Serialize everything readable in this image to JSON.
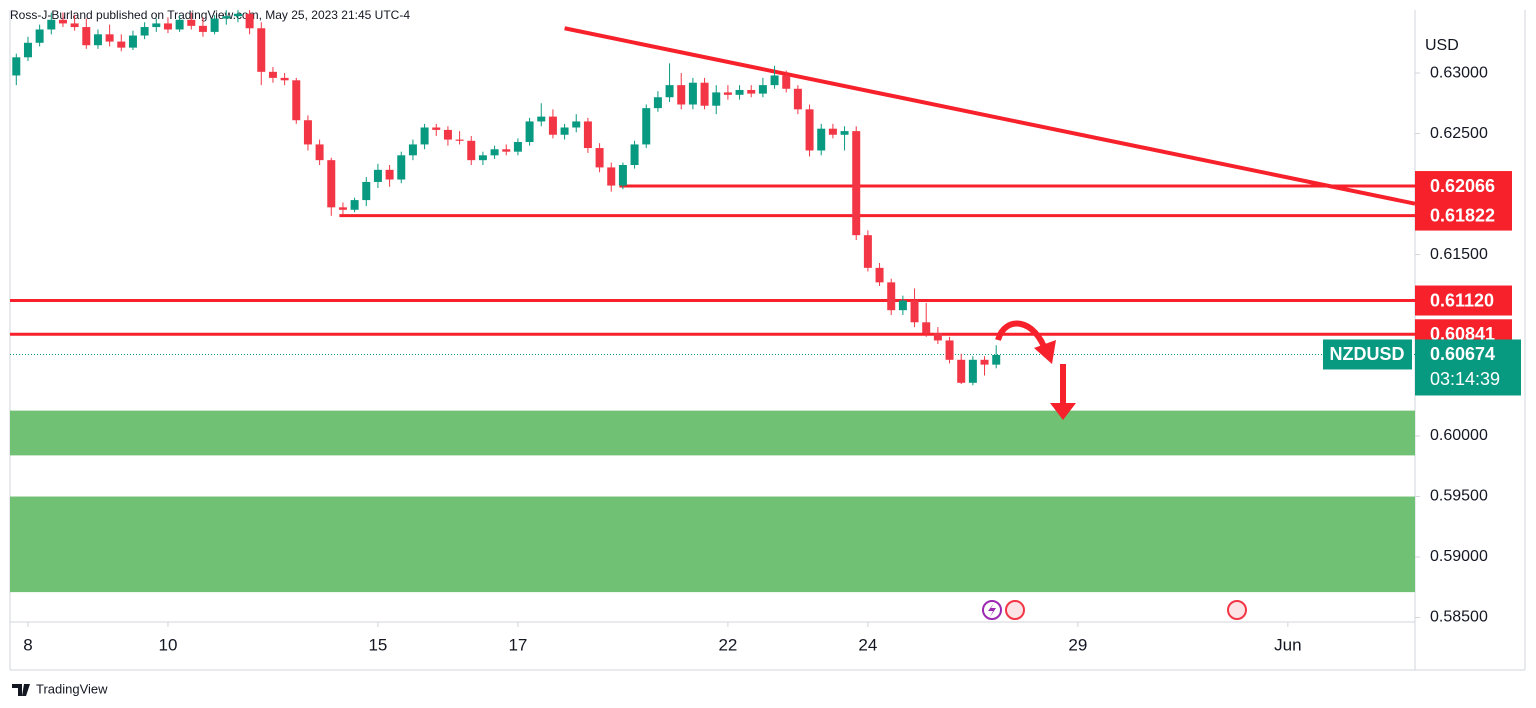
{
  "chart_data": {
    "type": "candlestick",
    "header": "Ross-J-Burland published on TradingView.com, May 25, 2023 21:45 UTC-4",
    "currency_label": "USD",
    "symbol": "NZDUSD",
    "countdown": "03:14:39",
    "last_price": 0.60674,
    "branding": "TradingView",
    "up_color": "#089981",
    "down_color": "#f23645",
    "level_color": "#f7212b",
    "zone_color": "#71c174",
    "x": [
      -1,
      0,
      1,
      2,
      3,
      4,
      5,
      6,
      7,
      8,
      9,
      10,
      11,
      12,
      13,
      14,
      15,
      16,
      17,
      18,
      19,
      20,
      21,
      22,
      23,
      24,
      25,
      26,
      27,
      28,
      29,
      30,
      31,
      32,
      33,
      34,
      35,
      36,
      37,
      38,
      39,
      40,
      41,
      42,
      43,
      44,
      45,
      46,
      47,
      48,
      49,
      50,
      51,
      52,
      53,
      54,
      55,
      56,
      57,
      58,
      59,
      60,
      61,
      62,
      63,
      64,
      65,
      66,
      67,
      68,
      69,
      70,
      71,
      72,
      73,
      74,
      75,
      76,
      77,
      78,
      79,
      80,
      81,
      82,
      83
    ],
    "open": [
      0.6298,
      0.6313,
      0.6325,
      0.6336,
      0.6344,
      0.6341,
      0.6338,
      0.6323,
      0.6332,
      0.6326,
      0.6321,
      0.6331,
      0.6338,
      0.6341,
      0.6336,
      0.6344,
      0.6339,
      0.6334,
      0.6345,
      0.6347,
      0.6349,
      0.6337,
      0.6301,
      0.6296,
      0.6294,
      0.6261,
      0.6241,
      0.6228,
      0.6189,
      0.6187,
      0.6195,
      0.621,
      0.622,
      0.6212,
      0.6232,
      0.6241,
      0.6255,
      0.6253,
      0.6245,
      0.6244,
      0.6228,
      0.6232,
      0.6237,
      0.6235,
      0.6243,
      0.626,
      0.6264,
      0.6249,
      0.6255,
      0.626,
      0.6238,
      0.6222,
      0.6207,
      0.6224,
      0.6241,
      0.6271,
      0.628,
      0.629,
      0.6274,
      0.6292,
      0.6273,
      0.6284,
      0.6282,
      0.6286,
      0.6283,
      0.629,
      0.6298,
      0.6287,
      0.627,
      0.6236,
      0.6254,
      0.6249,
      0.6252,
      0.6166,
      0.6139,
      0.6127,
      0.6104,
      0.6112,
      0.6094,
      0.6085,
      0.6079,
      0.6063,
      0.6044,
      0.6063,
      0.6059
    ],
    "high": [
      0.6316,
      0.633,
      0.634,
      0.635,
      0.635,
      0.6348,
      0.6345,
      0.6336,
      0.634,
      0.6332,
      0.6335,
      0.6342,
      0.6345,
      0.6346,
      0.6348,
      0.635,
      0.6346,
      0.6348,
      0.6352,
      0.6352,
      0.6352,
      0.6342,
      0.6305,
      0.63,
      0.6296,
      0.6265,
      0.6245,
      0.623,
      0.6193,
      0.6197,
      0.6214,
      0.6225,
      0.6224,
      0.6235,
      0.6245,
      0.6258,
      0.6258,
      0.6256,
      0.6252,
      0.6248,
      0.6235,
      0.624,
      0.6241,
      0.6246,
      0.6263,
      0.6275,
      0.627,
      0.6258,
      0.6266,
      0.6263,
      0.6242,
      0.6226,
      0.6226,
      0.6244,
      0.6274,
      0.6285,
      0.6308,
      0.63,
      0.6296,
      0.6296,
      0.629,
      0.629,
      0.629,
      0.629,
      0.6296,
      0.6306,
      0.6302,
      0.629,
      0.6274,
      0.6258,
      0.6258,
      0.6256,
      0.6256,
      0.617,
      0.6143,
      0.613,
      0.6116,
      0.6122,
      0.611,
      0.609,
      0.6082,
      0.6068,
      0.6066,
      0.6066,
      0.6075
    ],
    "low": [
      0.629,
      0.631,
      0.6322,
      0.6332,
      0.6338,
      0.6335,
      0.632,
      0.632,
      0.6322,
      0.6318,
      0.6319,
      0.6328,
      0.6334,
      0.6333,
      0.6334,
      0.6336,
      0.633,
      0.6332,
      0.634,
      0.6342,
      0.6332,
      0.629,
      0.6292,
      0.629,
      0.6258,
      0.6236,
      0.6224,
      0.6182,
      0.6183,
      0.6185,
      0.619,
      0.6205,
      0.6206,
      0.6209,
      0.6228,
      0.6237,
      0.6248,
      0.624,
      0.6241,
      0.6224,
      0.6224,
      0.6229,
      0.6232,
      0.6232,
      0.624,
      0.6256,
      0.6246,
      0.6245,
      0.6251,
      0.6234,
      0.6218,
      0.6202,
      0.6204,
      0.6221,
      0.6238,
      0.6268,
      0.6276,
      0.627,
      0.627,
      0.627,
      0.6266,
      0.6278,
      0.6278,
      0.628,
      0.628,
      0.6287,
      0.6284,
      0.6266,
      0.6231,
      0.6232,
      0.6246,
      0.6236,
      0.6162,
      0.6136,
      0.6124,
      0.61,
      0.61,
      0.609,
      0.6082,
      0.6076,
      0.606,
      0.6043,
      0.6042,
      0.605,
      0.6056
    ],
    "close": [
      0.6313,
      0.6325,
      0.6336,
      0.6344,
      0.6341,
      0.6338,
      0.6323,
      0.6332,
      0.6326,
      0.6321,
      0.6331,
      0.6338,
      0.6341,
      0.6336,
      0.6344,
      0.6339,
      0.6334,
      0.6345,
      0.6347,
      0.6349,
      0.6337,
      0.6301,
      0.6296,
      0.6294,
      0.6261,
      0.6241,
      0.6228,
      0.6189,
      0.6187,
      0.6195,
      0.621,
      0.622,
      0.6212,
      0.6232,
      0.6241,
      0.6255,
      0.6253,
      0.6245,
      0.6244,
      0.6228,
      0.6232,
      0.6237,
      0.6235,
      0.6243,
      0.626,
      0.6264,
      0.6249,
      0.6255,
      0.626,
      0.6238,
      0.6222,
      0.6207,
      0.6224,
      0.6241,
      0.6271,
      0.628,
      0.629,
      0.6274,
      0.6292,
      0.6273,
      0.6284,
      0.6282,
      0.6286,
      0.6283,
      0.629,
      0.6298,
      0.6287,
      0.627,
      0.6236,
      0.6254,
      0.6249,
      0.6252,
      0.6166,
      0.6139,
      0.6127,
      0.6104,
      0.6112,
      0.6094,
      0.6085,
      0.6079,
      0.6063,
      0.6044,
      0.6063,
      0.6059,
      0.6067
    ],
    "xlim": [
      -1.54,
      118.9
    ],
    "xticks": [
      {
        "value": 0,
        "label": "8"
      },
      {
        "value": 12,
        "label": "10"
      },
      {
        "value": 30,
        "label": "15"
      },
      {
        "value": 42,
        "label": "17"
      },
      {
        "value": 60,
        "label": "22"
      },
      {
        "value": 72,
        "label": "24"
      },
      {
        "value": 90,
        "label": "29"
      },
      {
        "value": 108,
        "label": "Jun"
      }
    ],
    "ylim": [
      0.58463,
      0.63521
    ],
    "yticks": [
      {
        "value": 0.63,
        "label": "0.63000"
      },
      {
        "value": 0.625,
        "label": "0.62500"
      },
      {
        "value": 0.615,
        "label": "0.61500"
      },
      {
        "value": 0.6,
        "label": "0.60000"
      },
      {
        "value": 0.595,
        "label": "0.59500"
      },
      {
        "value": 0.59,
        "label": "0.59000"
      },
      {
        "value": 0.585,
        "label": "0.58500"
      }
    ],
    "levels": [
      {
        "value": 0.62066,
        "label": "0.62066",
        "x": 50.7
      },
      {
        "value": 0.61822,
        "label": "0.61822",
        "x": 26.7
      },
      {
        "value": 0.6112,
        "label": "0.61120",
        "x": -1.54
      },
      {
        "value": 0.60841,
        "label": "0.60841",
        "x": -1.54
      }
    ],
    "trendline": {
      "x": [
        46,
        118.9
      ],
      "values": [
        0.6337,
        0.6192
      ]
    },
    "zones": [
      {
        "values": [
          0.6021,
          0.5984
        ]
      },
      {
        "values": [
          0.595,
          0.5871
        ]
      }
    ]
  }
}
